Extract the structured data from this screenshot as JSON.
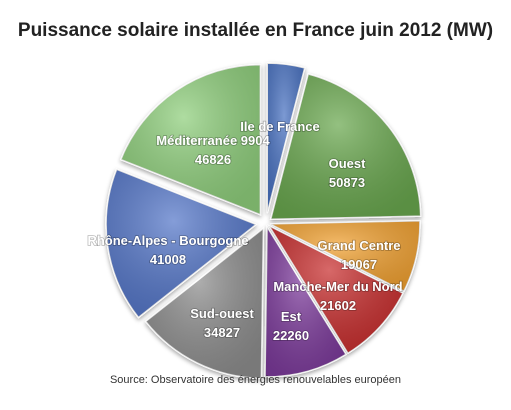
{
  "chart_data": {
    "type": "pie",
    "title": "Puissance solaire installée en France juin 2012 (MW)",
    "source": "Source:  Observatoire des énergies renouvelables européen",
    "slices": [
      {
        "label": "Ile de France",
        "value": 9904,
        "value_text": "",
        "color": "#4a72c2"
      },
      {
        "label": "Ouest",
        "value": 50873,
        "value_text": "50873",
        "color": "#6aa84f"
      },
      {
        "label": "Grand Centre",
        "value": 19067,
        "value_text": "19067",
        "color": "#f2a233"
      },
      {
        "label": "Manche-Mer du Nord",
        "value": 21602,
        "value_text": "21602",
        "color": "#c82f2f"
      },
      {
        "label": "Est",
        "value": 22260,
        "value_text": "22260",
        "color": "#7d3a9c"
      },
      {
        "label": "Sud-ouest",
        "value": 34827,
        "value_text": "34827",
        "color": "#8e8e8e"
      },
      {
        "label": "Rhône-Alpes - Bourgogne",
        "value": 41008,
        "value_text": "41008",
        "color": "#5577c9"
      },
      {
        "label": "Méditerranée",
        "value": 46826,
        "value_text": "46826",
        "color": "#8fcf7c",
        "extra_text": "9904"
      }
    ]
  }
}
